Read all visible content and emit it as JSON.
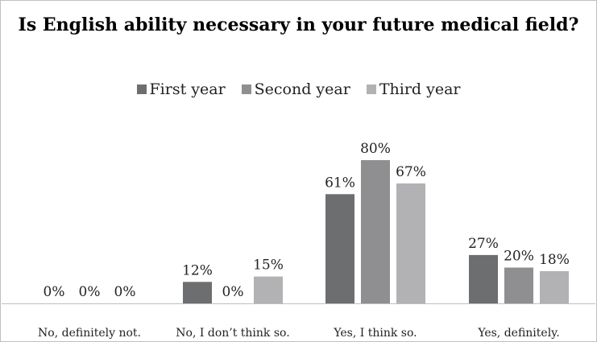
{
  "chart_data": {
    "type": "bar",
    "title": "Is English ability necessary in your future medical field?",
    "categories": [
      "No, definitely not.",
      "No, I don’t think so.",
      "Yes, I think so.",
      "Yes, definitely."
    ],
    "series": [
      {
        "name": "First year",
        "values": [
          0,
          12,
          61,
          27
        ],
        "labels": [
          "0%",
          "12%",
          "61%",
          "27%"
        ],
        "color": "#6d6e70"
      },
      {
        "name": "Second year",
        "values": [
          0,
          0,
          80,
          20
        ],
        "labels": [
          "0%",
          "0%",
          "80%",
          "20%"
        ],
        "color": "#8f8f91"
      },
      {
        "name": "Third year",
        "values": [
          0,
          15,
          67,
          18
        ],
        "labels": [
          "0%",
          "15%",
          "67%",
          "18%"
        ],
        "color": "#b2b2b4"
      }
    ],
    "ylim": [
      0,
      100
    ],
    "xlabel": "",
    "ylabel": "",
    "grid": false,
    "legend_position": "top"
  }
}
